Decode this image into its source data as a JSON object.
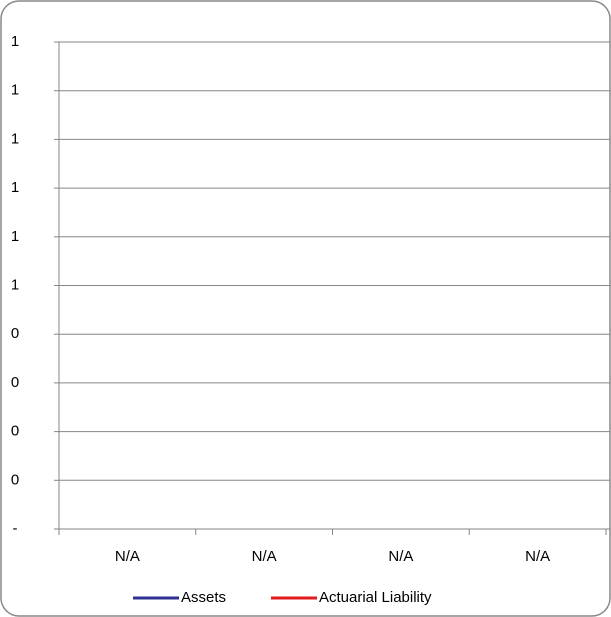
{
  "chart_data": {
    "type": "line",
    "categories": [
      "N/A",
      "N/A",
      "N/A",
      "N/A"
    ],
    "series": [
      {
        "name": "Assets",
        "color": "#2e3192",
        "values": [
          null,
          null,
          null,
          null
        ]
      },
      {
        "name": "Actuarial Liability",
        "color": "#e31a1c",
        "values": [
          null,
          null,
          null,
          null
        ]
      }
    ],
    "ylim": [
      0,
      1
    ],
    "yticks": [
      {
        "value": 0,
        "label": "-"
      },
      {
        "value": 0.1,
        "label": "0"
      },
      {
        "value": 0.2,
        "label": "0"
      },
      {
        "value": 0.3,
        "label": "0"
      },
      {
        "value": 0.4,
        "label": "0"
      },
      {
        "value": 0.5,
        "label": "1"
      },
      {
        "value": 0.6,
        "label": "1"
      },
      {
        "value": 0.7,
        "label": "1"
      },
      {
        "value": 0.8,
        "label": "1"
      },
      {
        "value": 0.9,
        "label": "1"
      },
      {
        "value": 1,
        "label": "1"
      }
    ],
    "grid": true,
    "legend": "bottom"
  }
}
